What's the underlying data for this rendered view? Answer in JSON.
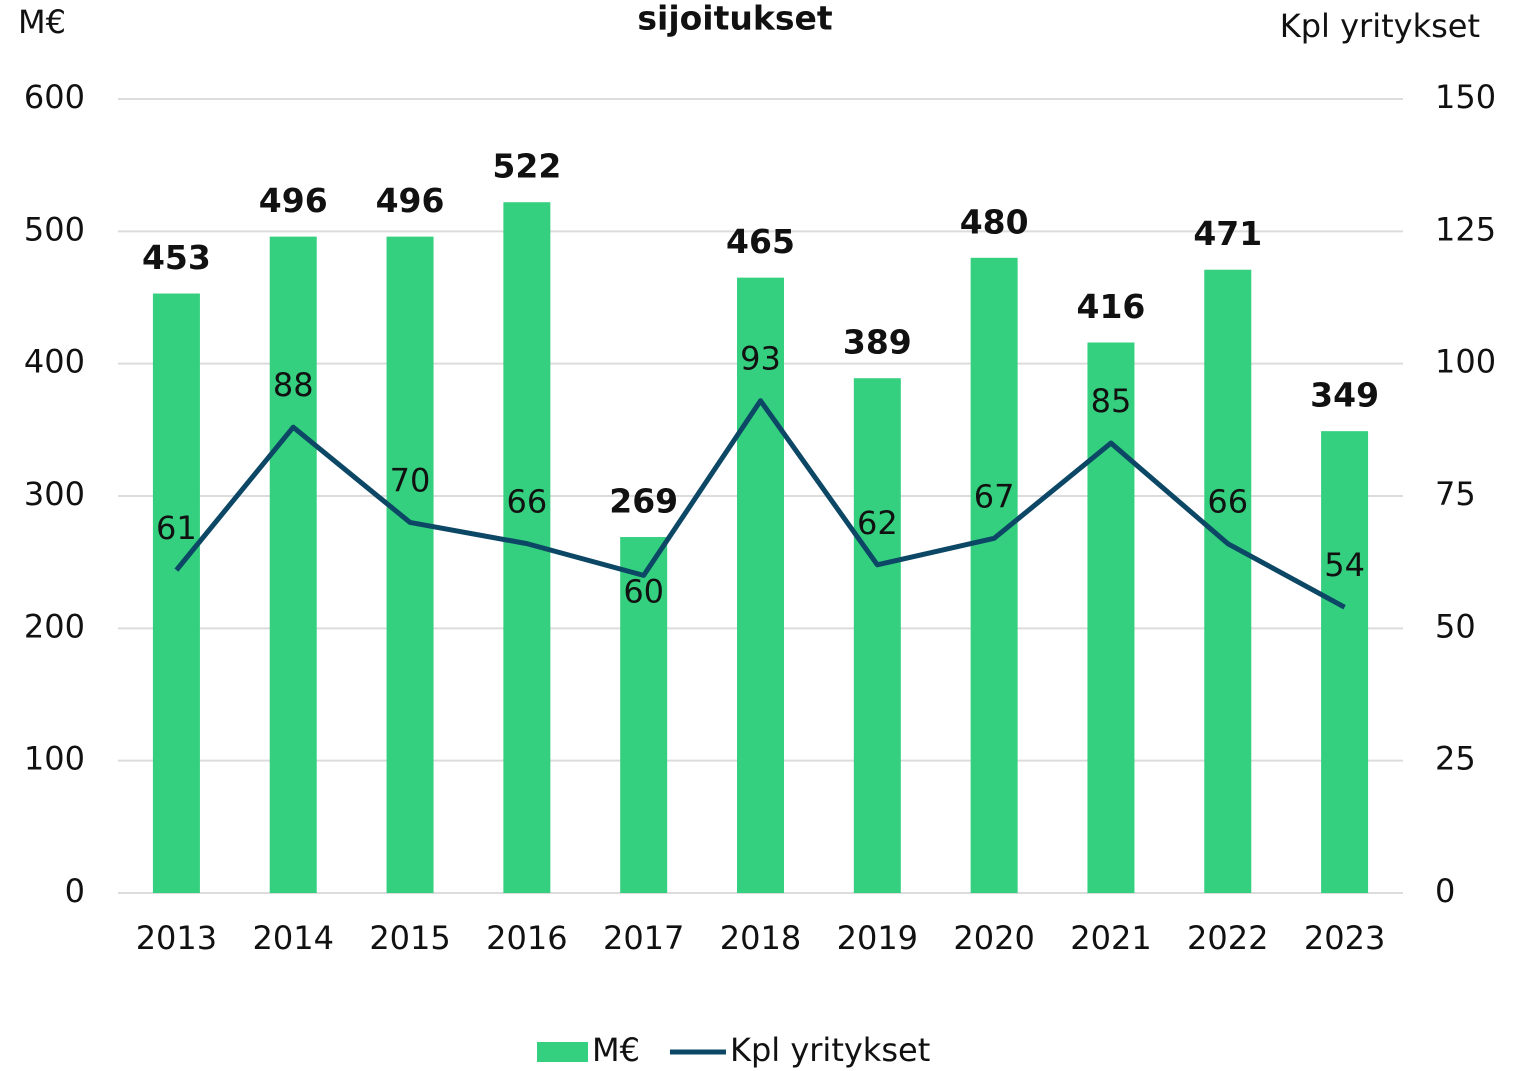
{
  "chart_data": {
    "type": "bar_line",
    "title": "sijoitukset",
    "y_label": "M€",
    "y2_label": "Kpl yritykset",
    "categories": [
      "2013",
      "2014",
      "2015",
      "2016",
      "2017",
      "2018",
      "2019",
      "2020",
      "2021",
      "2022",
      "2023"
    ],
    "series": [
      {
        "name": "M€",
        "type": "bar",
        "color": "#35d07f",
        "values": [
          453,
          496,
          496,
          522,
          269,
          465,
          389,
          480,
          416,
          471,
          349
        ]
      },
      {
        "name": "Kpl yritykset",
        "type": "line",
        "axis": "y2",
        "color": "#0d4766",
        "values": [
          61,
          88,
          70,
          66,
          60,
          93,
          62,
          67,
          85,
          66,
          54
        ]
      }
    ],
    "ylim": [
      0,
      600
    ],
    "yticks": [
      0,
      100,
      200,
      300,
      400,
      500,
      600
    ],
    "y2lim": [
      0,
      150
    ],
    "y2ticks": [
      0,
      25,
      50,
      75,
      100,
      125,
      150
    ],
    "grid": true,
    "legend": "bottom"
  }
}
